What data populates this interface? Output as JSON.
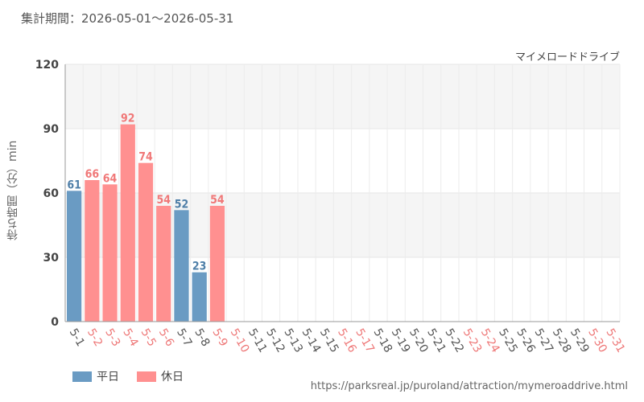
{
  "header": {
    "period": "集計期間：2026-05-01〜2026-05-31",
    "attraction_name": "マイメロードドライブ"
  },
  "colors": {
    "weekday": "#6a9bc3",
    "holiday": "#ff9090",
    "weekday_text": "#4f7fa8",
    "holiday_text": "#f07878",
    "weekday_tick": "#555555",
    "holiday_tick": "#ee7777"
  },
  "chart_data": {
    "type": "bar",
    "title": "",
    "xlabel": "",
    "ylabel": "待ち時間（分）min",
    "ylim": [
      0,
      120
    ],
    "yticks": [
      0,
      30,
      60,
      90,
      120
    ],
    "grid": true,
    "categories": [
      "5-1",
      "5-2",
      "5-3",
      "5-4",
      "5-5",
      "5-6",
      "5-7",
      "5-8",
      "5-9",
      "5-10",
      "5-11",
      "5-12",
      "5-13",
      "5-14",
      "5-15",
      "5-16",
      "5-17",
      "5-18",
      "5-19",
      "5-20",
      "5-21",
      "5-22",
      "5-23",
      "5-24",
      "5-25",
      "5-26",
      "5-27",
      "5-28",
      "5-29",
      "5-30",
      "5-31"
    ],
    "day_type": [
      "weekday",
      "holiday",
      "holiday",
      "holiday",
      "holiday",
      "holiday",
      "weekday",
      "weekday",
      "holiday",
      "holiday",
      "weekday",
      "weekday",
      "weekday",
      "weekday",
      "weekday",
      "holiday",
      "holiday",
      "weekday",
      "weekday",
      "weekday",
      "weekday",
      "weekday",
      "holiday",
      "holiday",
      "weekday",
      "weekday",
      "weekday",
      "weekday",
      "weekday",
      "holiday",
      "holiday"
    ],
    "values": [
      61,
      66,
      64,
      92,
      74,
      54,
      52,
      23,
      54,
      null,
      null,
      null,
      null,
      null,
      null,
      null,
      null,
      null,
      null,
      null,
      null,
      null,
      null,
      null,
      null,
      null,
      null,
      null,
      null,
      null,
      null
    ],
    "legend": [
      {
        "label": "平日",
        "type": "weekday"
      },
      {
        "label": "休日",
        "type": "holiday"
      }
    ],
    "legend_position": "bottom-left"
  },
  "footer": {
    "source_url": "https://parksreal.jp/puroland/attraction/mymeroaddrive.html"
  }
}
